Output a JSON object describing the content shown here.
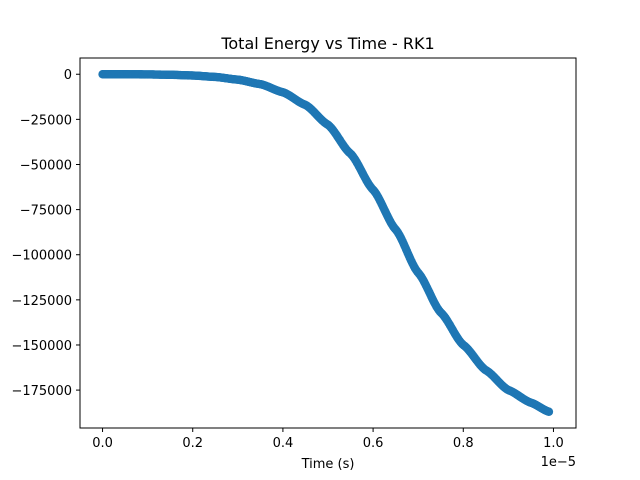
{
  "chart_data": {
    "type": "scatter",
    "title": "Total Energy vs Time - RK1",
    "xlabel": "Time (s)",
    "ylabel": "",
    "x_offset_text": "1e−5",
    "xlim": [
      -0.05,
      1.05
    ],
    "ylim": [
      -196000,
      9000
    ],
    "grid": false,
    "marker_color": "#1f77b4",
    "x_ticks": [
      {
        "value": 0.0,
        "label": "0.0"
      },
      {
        "value": 0.2,
        "label": "0.2"
      },
      {
        "value": 0.4,
        "label": "0.4"
      },
      {
        "value": 0.6,
        "label": "0.6"
      },
      {
        "value": 0.8,
        "label": "0.8"
      },
      {
        "value": 1.0,
        "label": "1.0"
      }
    ],
    "y_ticks": [
      {
        "value": 0,
        "label": "0"
      },
      {
        "value": -25000,
        "label": "−25000"
      },
      {
        "value": -50000,
        "label": "−50000"
      },
      {
        "value": -75000,
        "label": "−75000"
      },
      {
        "value": -100000,
        "label": "−100000"
      },
      {
        "value": -125000,
        "label": "−125000"
      },
      {
        "value": -150000,
        "label": "−150000"
      },
      {
        "value": -175000,
        "label": "−175000"
      }
    ],
    "series": [
      {
        "name": "",
        "x": [
          0.0,
          0.05,
          0.1,
          0.15,
          0.2,
          0.25,
          0.3,
          0.35,
          0.4,
          0.45,
          0.5,
          0.55,
          0.6,
          0.65,
          0.7,
          0.75,
          0.8,
          0.85,
          0.9,
          0.95,
          0.99
        ],
        "y": [
          0,
          0,
          -100,
          -300,
          -700,
          -1500,
          -3000,
          -5500,
          -10000,
          -17000,
          -28000,
          -44000,
          -64000,
          -86000,
          -110000,
          -132000,
          -150000,
          -164000,
          -175000,
          -182000,
          -187000
        ]
      }
    ]
  }
}
